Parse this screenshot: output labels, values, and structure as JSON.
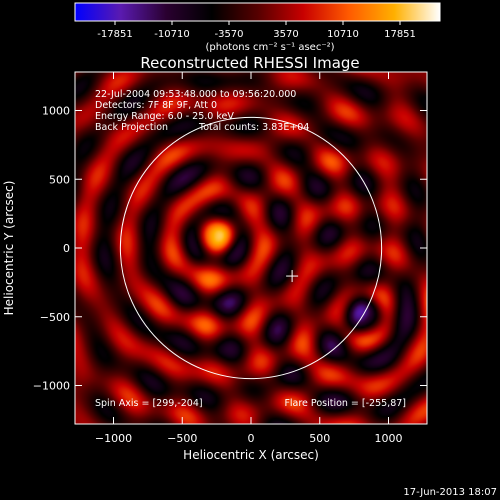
{
  "colorbar": {
    "ticks": [
      "-17851",
      "-10710",
      "-3570",
      "3570",
      "10710",
      "17851"
    ],
    "units": "(photons cm⁻² s⁻¹ asec⁻²)",
    "colors": [
      "#0000ff",
      "#5a1ab0",
      "#2a0030",
      "#000000",
      "#550000",
      "#c80000",
      "#ff5a00",
      "#ffb000",
      "#ffffff"
    ]
  },
  "chart_data": {
    "type": "heatmap",
    "title": "Reconstructed RHESSI Image",
    "xlabel": "Heliocentric X (arcsec)",
    "ylabel": "Heliocentric Y (arcsec)",
    "xlim": [
      -1280,
      1280
    ],
    "ylim": [
      -1280,
      1280
    ],
    "xticks": [
      -1000,
      -500,
      0,
      500,
      1000
    ],
    "yticks": [
      -1000,
      -500,
      0,
      500,
      1000
    ],
    "xtick_labels": [
      "−1000",
      "−500",
      "0",
      "500",
      "1000"
    ],
    "ytick_labels": [
      "−1000",
      "−500",
      "0",
      "500",
      "1000"
    ],
    "value_range": [
      -17851,
      17851
    ],
    "annotations": {
      "time": "22-Jul-2004 09:53:48.000 to 09:56:20.000",
      "detectors": "Detectors: 7F 8F 9F, Att 0",
      "energy": "Energy Range: 6.0 - 25.0 keV",
      "method": "Back Projection",
      "counts": "Total counts: 3.83E+04",
      "spin_axis": "Spin Axis = [299,-204]",
      "flare_position": "Flare Position = [-255,87]"
    },
    "solar_limb": {
      "center": [
        0,
        0
      ],
      "radius": 950
    },
    "spin_axis_marker": [
      299,
      -204
    ],
    "flare_position": [
      -255,
      87
    ],
    "sources": [
      {
        "x": -255,
        "y": 87,
        "amplitude": 17851
      },
      {
        "x": 830,
        "y": -500,
        "amplitude": -15000
      }
    ]
  },
  "footer": {
    "date": "17-Jun-2013 18:07"
  }
}
